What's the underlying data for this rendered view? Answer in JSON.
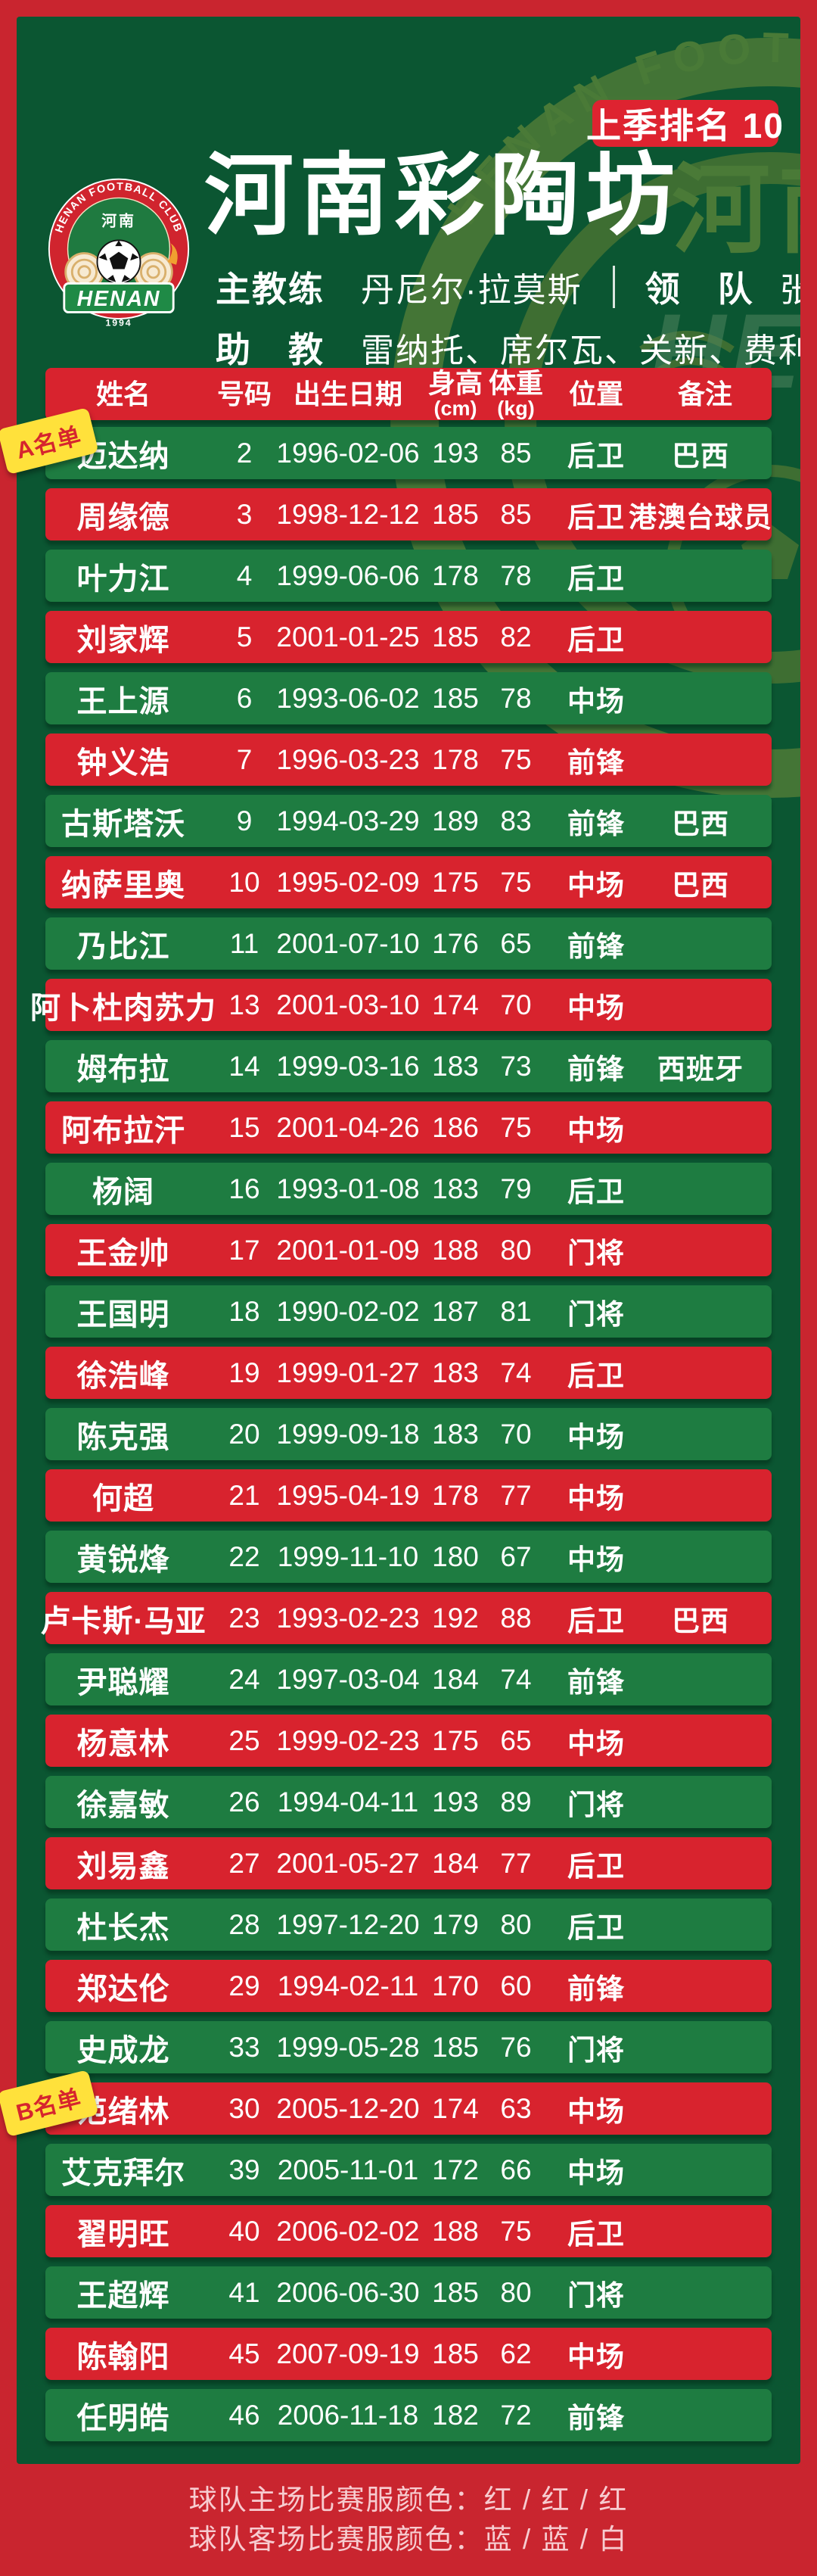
{
  "colors": {
    "outer_red": "#c9252f",
    "panel_green": "#0b5632",
    "row_green": "#1e7c41",
    "row_red": "#d8232e",
    "tag_yellow": "#ffe13b",
    "footer_pink": "#f7ccd0",
    "logo_gold": "#d9b06c",
    "watermark_olive": "#9aa43c"
  },
  "header": {
    "rank_badge": "上季排名 10",
    "title": "河南彩陶坊",
    "coach_label": "主教练",
    "coach_name": "丹尼尔·拉莫斯",
    "leader_label": "领　队",
    "leader_name": "张波",
    "assistant_label": "助　教",
    "assistant_names": "雷纳托、席尔瓦、关新、费利佩",
    "logo": {
      "arc_text": "HENAN FOOTBALL CLUB",
      "cn_text": "河南",
      "banner_text": "HENAN",
      "year": "1994"
    }
  },
  "watermark": {
    "arc_text": "HENAN FOOTBALL CLUB",
    "cn_text": "河南",
    "big_text": "HENAN"
  },
  "table": {
    "columns": [
      {
        "label": "姓名",
        "sub": ""
      },
      {
        "label": "号码",
        "sub": ""
      },
      {
        "label": "出生日期",
        "sub": ""
      },
      {
        "label": "身高",
        "sub": "(cm)"
      },
      {
        "label": "体重",
        "sub": "(kg)"
      },
      {
        "label": "位置",
        "sub": ""
      },
      {
        "label": "备注",
        "sub": ""
      }
    ],
    "tag_a": "A名单",
    "tag_b": "B名单",
    "rows": [
      {
        "name": "迈达纳",
        "number": "2",
        "dob": "1996-02-06",
        "height": "193",
        "weight": "85",
        "position": "后卫",
        "note": "巴西"
      },
      {
        "name": "周缘德",
        "number": "3",
        "dob": "1998-12-12",
        "height": "185",
        "weight": "85",
        "position": "后卫",
        "note": "港澳台球员"
      },
      {
        "name": "叶力江",
        "number": "4",
        "dob": "1999-06-06",
        "height": "178",
        "weight": "78",
        "position": "后卫",
        "note": ""
      },
      {
        "name": "刘家辉",
        "number": "5",
        "dob": "2001-01-25",
        "height": "185",
        "weight": "82",
        "position": "后卫",
        "note": ""
      },
      {
        "name": "王上源",
        "number": "6",
        "dob": "1993-06-02",
        "height": "185",
        "weight": "78",
        "position": "中场",
        "note": ""
      },
      {
        "name": "钟义浩",
        "number": "7",
        "dob": "1996-03-23",
        "height": "178",
        "weight": "75",
        "position": "前锋",
        "note": ""
      },
      {
        "name": "古斯塔沃",
        "number": "9",
        "dob": "1994-03-29",
        "height": "189",
        "weight": "83",
        "position": "前锋",
        "note": "巴西"
      },
      {
        "name": "纳萨里奥",
        "number": "10",
        "dob": "1995-02-09",
        "height": "175",
        "weight": "75",
        "position": "中场",
        "note": "巴西"
      },
      {
        "name": "乃比江",
        "number": "11",
        "dob": "2001-07-10",
        "height": "176",
        "weight": "65",
        "position": "前锋",
        "note": ""
      },
      {
        "name": "阿卜杜肉苏力",
        "number": "13",
        "dob": "2001-03-10",
        "height": "174",
        "weight": "70",
        "position": "中场",
        "note": ""
      },
      {
        "name": "姆布拉",
        "number": "14",
        "dob": "1999-03-16",
        "height": "183",
        "weight": "73",
        "position": "前锋",
        "note": "西班牙"
      },
      {
        "name": "阿布拉汗",
        "number": "15",
        "dob": "2001-04-26",
        "height": "186",
        "weight": "75",
        "position": "中场",
        "note": ""
      },
      {
        "name": "杨阔",
        "number": "16",
        "dob": "1993-01-08",
        "height": "183",
        "weight": "79",
        "position": "后卫",
        "note": ""
      },
      {
        "name": "王金帅",
        "number": "17",
        "dob": "2001-01-09",
        "height": "188",
        "weight": "80",
        "position": "门将",
        "note": ""
      },
      {
        "name": "王国明",
        "number": "18",
        "dob": "1990-02-02",
        "height": "187",
        "weight": "81",
        "position": "门将",
        "note": ""
      },
      {
        "name": "徐浩峰",
        "number": "19",
        "dob": "1999-01-27",
        "height": "183",
        "weight": "74",
        "position": "后卫",
        "note": ""
      },
      {
        "name": "陈克强",
        "number": "20",
        "dob": "1999-09-18",
        "height": "183",
        "weight": "70",
        "position": "中场",
        "note": ""
      },
      {
        "name": "何超",
        "number": "21",
        "dob": "1995-04-19",
        "height": "178",
        "weight": "77",
        "position": "中场",
        "note": ""
      },
      {
        "name": "黄锐烽",
        "number": "22",
        "dob": "1999-11-10",
        "height": "180",
        "weight": "67",
        "position": "中场",
        "note": ""
      },
      {
        "name": "卢卡斯·马亚",
        "number": "23",
        "dob": "1993-02-23",
        "height": "192",
        "weight": "88",
        "position": "后卫",
        "note": "巴西"
      },
      {
        "name": "尹聪耀",
        "number": "24",
        "dob": "1997-03-04",
        "height": "184",
        "weight": "74",
        "position": "前锋",
        "note": ""
      },
      {
        "name": "杨意林",
        "number": "25",
        "dob": "1999-02-23",
        "height": "175",
        "weight": "65",
        "position": "中场",
        "note": ""
      },
      {
        "name": "徐嘉敏",
        "number": "26",
        "dob": "1994-04-11",
        "height": "193",
        "weight": "89",
        "position": "门将",
        "note": ""
      },
      {
        "name": "刘易鑫",
        "number": "27",
        "dob": "2001-05-27",
        "height": "184",
        "weight": "77",
        "position": "后卫",
        "note": ""
      },
      {
        "name": "杜长杰",
        "number": "28",
        "dob": "1997-12-20",
        "height": "179",
        "weight": "80",
        "position": "后卫",
        "note": ""
      },
      {
        "name": "郑达伦",
        "number": "29",
        "dob": "1994-02-11",
        "height": "170",
        "weight": "60",
        "position": "前锋",
        "note": ""
      },
      {
        "name": "史成龙",
        "number": "33",
        "dob": "1999-05-28",
        "height": "185",
        "weight": "76",
        "position": "门将",
        "note": ""
      },
      {
        "name": "范绪林",
        "number": "30",
        "dob": "2005-12-20",
        "height": "174",
        "weight": "63",
        "position": "中场",
        "note": ""
      },
      {
        "name": "艾克拜尔",
        "number": "39",
        "dob": "2005-11-01",
        "height": "172",
        "weight": "66",
        "position": "中场",
        "note": ""
      },
      {
        "name": "翟明旺",
        "number": "40",
        "dob": "2006-02-02",
        "height": "188",
        "weight": "75",
        "position": "后卫",
        "note": ""
      },
      {
        "name": "王超辉",
        "number": "41",
        "dob": "2006-06-30",
        "height": "185",
        "weight": "80",
        "position": "门将",
        "note": ""
      },
      {
        "name": "陈翰阳",
        "number": "45",
        "dob": "2007-09-19",
        "height": "185",
        "weight": "62",
        "position": "中场",
        "note": ""
      },
      {
        "name": "任明皓",
        "number": "46",
        "dob": "2006-11-18",
        "height": "182",
        "weight": "72",
        "position": "前锋",
        "note": ""
      }
    ]
  },
  "footer": {
    "home_kit": "球队主场比赛服颜色：红 / 红 / 红",
    "away_kit": "球队客场比赛服颜色：蓝 / 蓝 / 白"
  }
}
